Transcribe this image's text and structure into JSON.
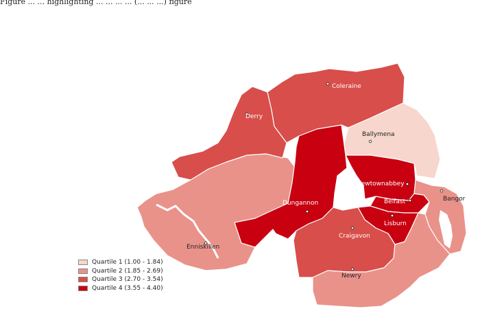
{
  "caption": "Figure ... ... highlighting ... ... ... ... (... ... ...) figure",
  "legend": [
    {
      "label": "Quartile 1 (1.00 - 1.84)",
      "color": "#f7d6cd"
    },
    {
      "label": "Quartile 2 (1.85 - 2.69)",
      "color": "#e9928a"
    },
    {
      "label": "Quartile 3 (2.70 - 3.54)",
      "color": "#d84e4a"
    },
    {
      "label": "Quartile 4 (3.55 - 4.40)",
      "color": "#c80010"
    }
  ],
  "regions": [
    {
      "name": "Coleraine",
      "quartile": 3
    },
    {
      "name": "Derry",
      "quartile": 3
    },
    {
      "name": "Ballymena",
      "quartile": 1
    },
    {
      "name": "Newtownabbey",
      "quartile": 4
    },
    {
      "name": "Belfast",
      "quartile": 4
    },
    {
      "name": "Lisburn",
      "quartile": 4
    },
    {
      "name": "Bangor",
      "quartile": 2
    },
    {
      "name": "Dungannon",
      "quartile": 4
    },
    {
      "name": "Craigavon",
      "quartile": 3
    },
    {
      "name": "Enniskillen",
      "quartile": 2
    },
    {
      "name": "Newry",
      "quartile": 2
    }
  ],
  "towns": [
    "Coleraine",
    "Derry",
    "Ballymena",
    "Newtownabbey",
    "Belfast",
    "Lisburn",
    "Bangor",
    "Dungannon",
    "Craigavon",
    "Enniskillen",
    "Newry"
  ]
}
